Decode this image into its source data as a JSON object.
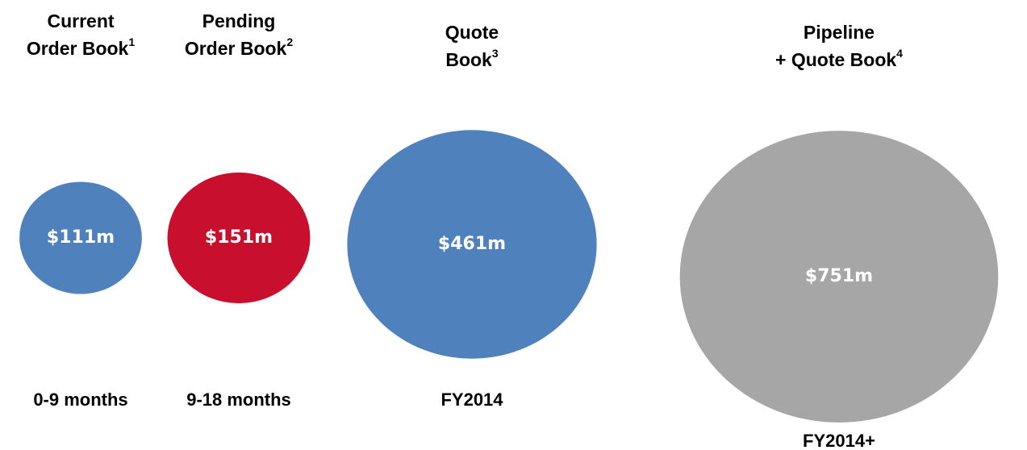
{
  "chart_data": {
    "type": "bubble",
    "categories": [
      [
        "Current",
        "Order Book"
      ],
      [
        "Pending",
        "Order Book"
      ],
      [
        "Quote",
        "Book"
      ],
      [
        "Pipeline",
        "+ Quote Book"
      ]
    ],
    "footnotes": [
      "1",
      "2",
      "3",
      "4"
    ],
    "values": [
      111,
      151,
      461,
      751
    ],
    "value_labels": [
      "$111m",
      "$151m",
      "$461m",
      "$751m"
    ],
    "periods": [
      "0-9 months",
      "9-18 months",
      "FY2014",
      "FY2014+"
    ],
    "colors": [
      "#4f81bd",
      "#c8102e",
      "#4f81bd",
      "#a6a6a6"
    ]
  }
}
